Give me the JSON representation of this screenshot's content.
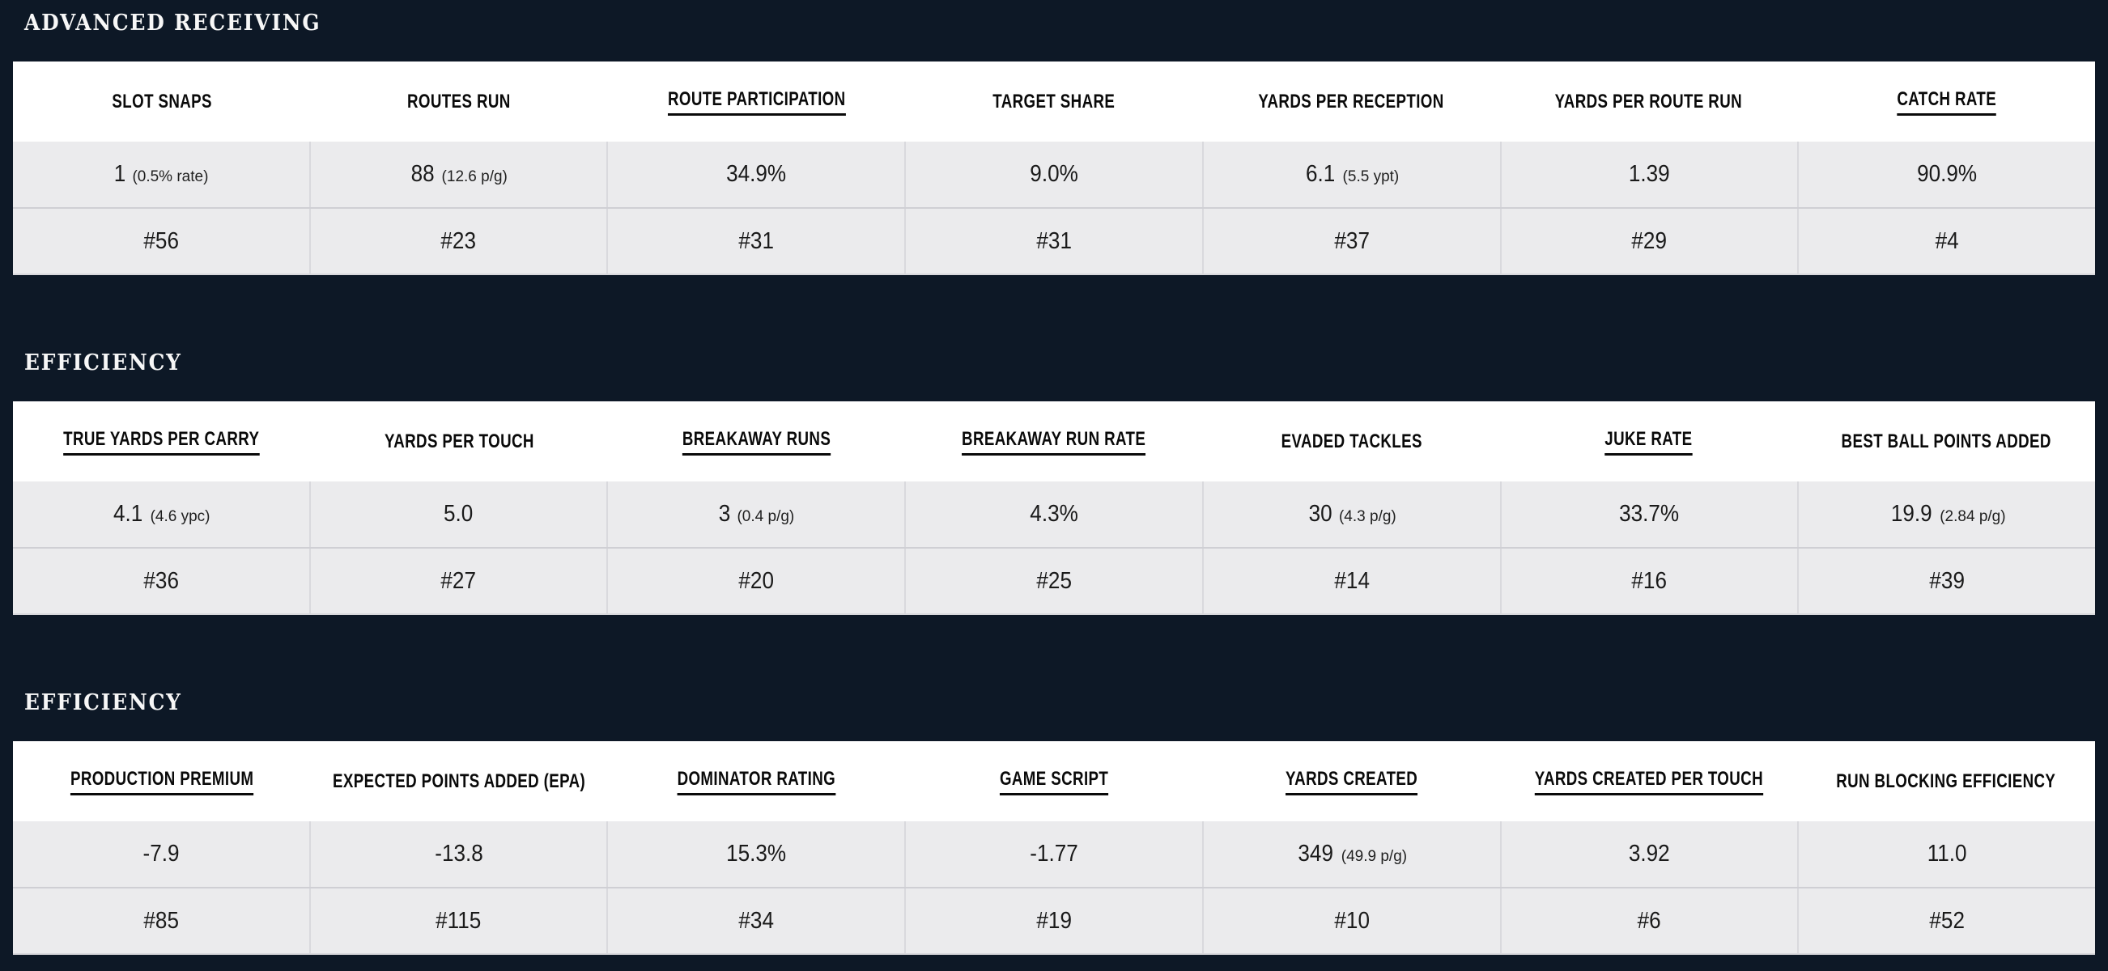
{
  "colors": {
    "page_background": "#0d1826",
    "table_header_bg": "#ffffff",
    "data_row_bg": "#ebebed",
    "cell_divider": "#d9d9dd",
    "row_divider": "#cfcfd4",
    "title_text": "#f7f7f7",
    "table_text": "#1a1a1a"
  },
  "sections": [
    {
      "title": "ADVANCED RECEIVING",
      "columns": [
        {
          "label": "SLOT SNAPS",
          "underline": false,
          "value": "1",
          "sub": "(0.5% rate)",
          "rank": "#56"
        },
        {
          "label": "ROUTES RUN",
          "underline": false,
          "value": "88",
          "sub": "(12.6 p/g)",
          "rank": "#23"
        },
        {
          "label": "ROUTE PARTICIPATION",
          "underline": true,
          "value": "34.9%",
          "sub": "",
          "rank": "#31"
        },
        {
          "label": "TARGET SHARE",
          "underline": false,
          "value": "9.0%",
          "sub": "",
          "rank": "#31"
        },
        {
          "label": "YARDS PER RECEPTION",
          "underline": false,
          "value": "6.1",
          "sub": "(5.5 ypt)",
          "rank": "#37"
        },
        {
          "label": "YARDS PER ROUTE RUN",
          "underline": false,
          "value": "1.39",
          "sub": "",
          "rank": "#29"
        },
        {
          "label": "CATCH RATE",
          "underline": true,
          "value": "90.9%",
          "sub": "",
          "rank": "#4"
        }
      ]
    },
    {
      "title": "EFFICIENCY",
      "columns": [
        {
          "label": "TRUE YARDS PER CARRY",
          "underline": true,
          "value": "4.1",
          "sub": "(4.6 ypc)",
          "rank": "#36"
        },
        {
          "label": "YARDS PER TOUCH",
          "underline": false,
          "value": "5.0",
          "sub": "",
          "rank": "#27"
        },
        {
          "label": "BREAKAWAY RUNS",
          "underline": true,
          "value": "3",
          "sub": "(0.4 p/g)",
          "rank": "#20"
        },
        {
          "label": "BREAKAWAY RUN RATE",
          "underline": true,
          "value": "4.3%",
          "sub": "",
          "rank": "#25"
        },
        {
          "label": "EVADED TACKLES",
          "underline": false,
          "value": "30",
          "sub": "(4.3 p/g)",
          "rank": "#14"
        },
        {
          "label": "JUKE RATE",
          "underline": true,
          "value": "33.7%",
          "sub": "",
          "rank": "#16"
        },
        {
          "label": "BEST BALL POINTS ADDED",
          "underline": false,
          "value": "19.9",
          "sub": "(2.84 p/g)",
          "rank": "#39"
        }
      ]
    },
    {
      "title": "EFFICIENCY",
      "columns": [
        {
          "label": "PRODUCTION PREMIUM",
          "underline": true,
          "value": "-7.9",
          "sub": "",
          "rank": "#85"
        },
        {
          "label": "EXPECTED POINTS ADDED (EPA)",
          "underline": false,
          "value": "-13.8",
          "sub": "",
          "rank": "#115"
        },
        {
          "label": "DOMINATOR RATING",
          "underline": true,
          "value": "15.3%",
          "sub": "",
          "rank": "#34"
        },
        {
          "label": "GAME SCRIPT",
          "underline": true,
          "value": "-1.77",
          "sub": "",
          "rank": "#19"
        },
        {
          "label": "YARDS CREATED",
          "underline": true,
          "value": "349",
          "sub": "(49.9 p/g)",
          "rank": "#10"
        },
        {
          "label": "YARDS CREATED PER TOUCH",
          "underline": true,
          "value": "3.92",
          "sub": "",
          "rank": "#6"
        },
        {
          "label": "RUN BLOCKING EFFICIENCY",
          "underline": false,
          "value": "11.0",
          "sub": "",
          "rank": "#52"
        }
      ]
    }
  ]
}
